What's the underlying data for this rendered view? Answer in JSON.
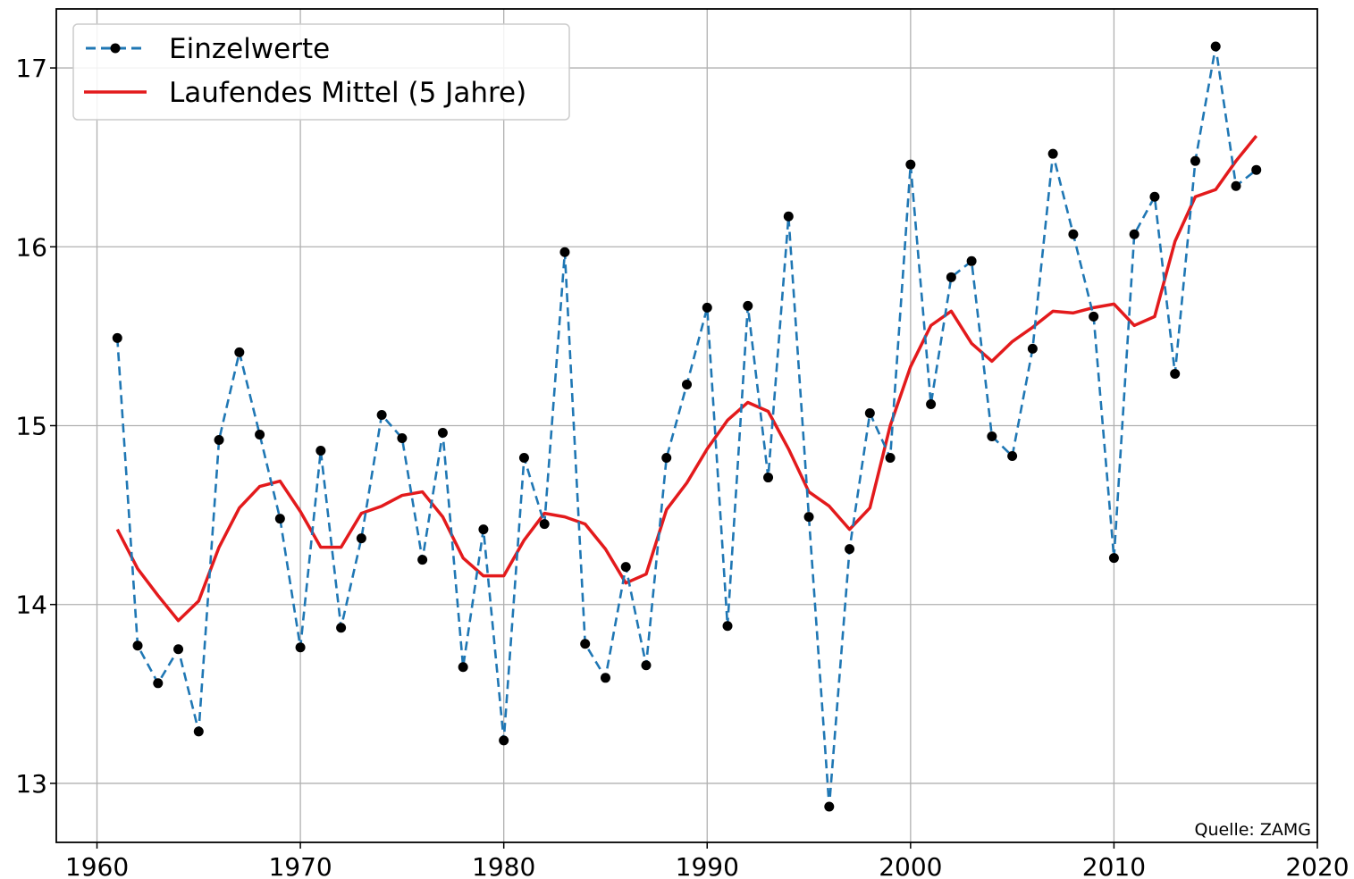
{
  "chart_data": {
    "type": "line",
    "xlim": [
      1958,
      2020
    ],
    "ylim": [
      12.67,
      17.33
    ],
    "xticks": [
      "1960",
      "1970",
      "1980",
      "1990",
      "2000",
      "2010",
      "2020"
    ],
    "yticks": [
      "13",
      "14",
      "15",
      "16",
      "17"
    ],
    "grid": true,
    "legend_position": "top-left",
    "source_note": "Quelle: ZAMG",
    "series": [
      {
        "name": "Einzelwerte",
        "style": "dashed-markers",
        "color": "#1f77b4",
        "marker_color": "#000000",
        "x": [
          1961,
          1962,
          1963,
          1964,
          1965,
          1966,
          1967,
          1968,
          1969,
          1970,
          1971,
          1972,
          1973,
          1974,
          1975,
          1976,
          1977,
          1978,
          1979,
          1980,
          1981,
          1982,
          1983,
          1984,
          1985,
          1986,
          1987,
          1988,
          1989,
          1990,
          1991,
          1992,
          1993,
          1994,
          1995,
          1996,
          1997,
          1998,
          1999,
          2000,
          2001,
          2002,
          2003,
          2004,
          2005,
          2006,
          2007,
          2008,
          2009,
          2010,
          2011,
          2012,
          2013,
          2014,
          2015,
          2016,
          2017
        ],
        "values": [
          15.49,
          13.77,
          13.56,
          13.75,
          13.29,
          14.92,
          15.41,
          14.95,
          14.48,
          13.76,
          14.86,
          13.87,
          14.37,
          15.06,
          14.93,
          14.25,
          14.96,
          13.65,
          14.42,
          13.24,
          14.82,
          14.45,
          15.97,
          13.78,
          13.59,
          14.21,
          13.66,
          14.82,
          15.23,
          15.66,
          13.88,
          15.67,
          14.71,
          16.17,
          14.49,
          12.87,
          14.31,
          15.07,
          14.82,
          16.46,
          15.12,
          15.83,
          15.92,
          14.94,
          14.83,
          15.43,
          16.52,
          16.07,
          15.61,
          14.26,
          16.07,
          16.28,
          15.29,
          16.48,
          17.12,
          16.34,
          16.43
        ]
      },
      {
        "name": "Laufendes Mittel (5 Jahre)",
        "style": "solid",
        "color": "#e31a1c",
        "x": [
          1961,
          1962,
          1963,
          1964,
          1965,
          1966,
          1967,
          1968,
          1969,
          1970,
          1971,
          1972,
          1973,
          1974,
          1975,
          1976,
          1977,
          1978,
          1979,
          1980,
          1981,
          1982,
          1983,
          1984,
          1985,
          1986,
          1987,
          1988,
          1989,
          1990,
          1991,
          1992,
          1993,
          1994,
          1995,
          1996,
          1997,
          1998,
          1999,
          2000,
          2001,
          2002,
          2003,
          2004,
          2005,
          2006,
          2007,
          2008,
          2009,
          2010,
          2011,
          2012,
          2013,
          2014,
          2015,
          2016,
          2017
        ],
        "values": [
          14.42,
          14.2,
          14.05,
          13.91,
          14.02,
          14.32,
          14.54,
          14.66,
          14.69,
          14.52,
          14.32,
          14.32,
          14.51,
          14.55,
          14.61,
          14.63,
          14.49,
          14.26,
          14.16,
          14.16,
          14.36,
          14.51,
          14.49,
          14.45,
          14.31,
          14.12,
          14.17,
          14.53,
          14.68,
          14.87,
          15.03,
          15.13,
          15.08,
          14.87,
          14.63,
          14.55,
          14.42,
          14.54,
          15.0,
          15.33,
          15.56,
          15.64,
          15.46,
          15.36,
          15.47,
          15.55,
          15.64,
          15.63,
          15.66,
          15.68,
          15.56,
          15.61,
          16.03,
          16.28,
          16.32,
          16.48,
          16.62
        ]
      }
    ]
  },
  "colors": {
    "series_blue": "#1f77b4",
    "series_red": "#e31a1c",
    "grid": "#b0b0b0"
  }
}
